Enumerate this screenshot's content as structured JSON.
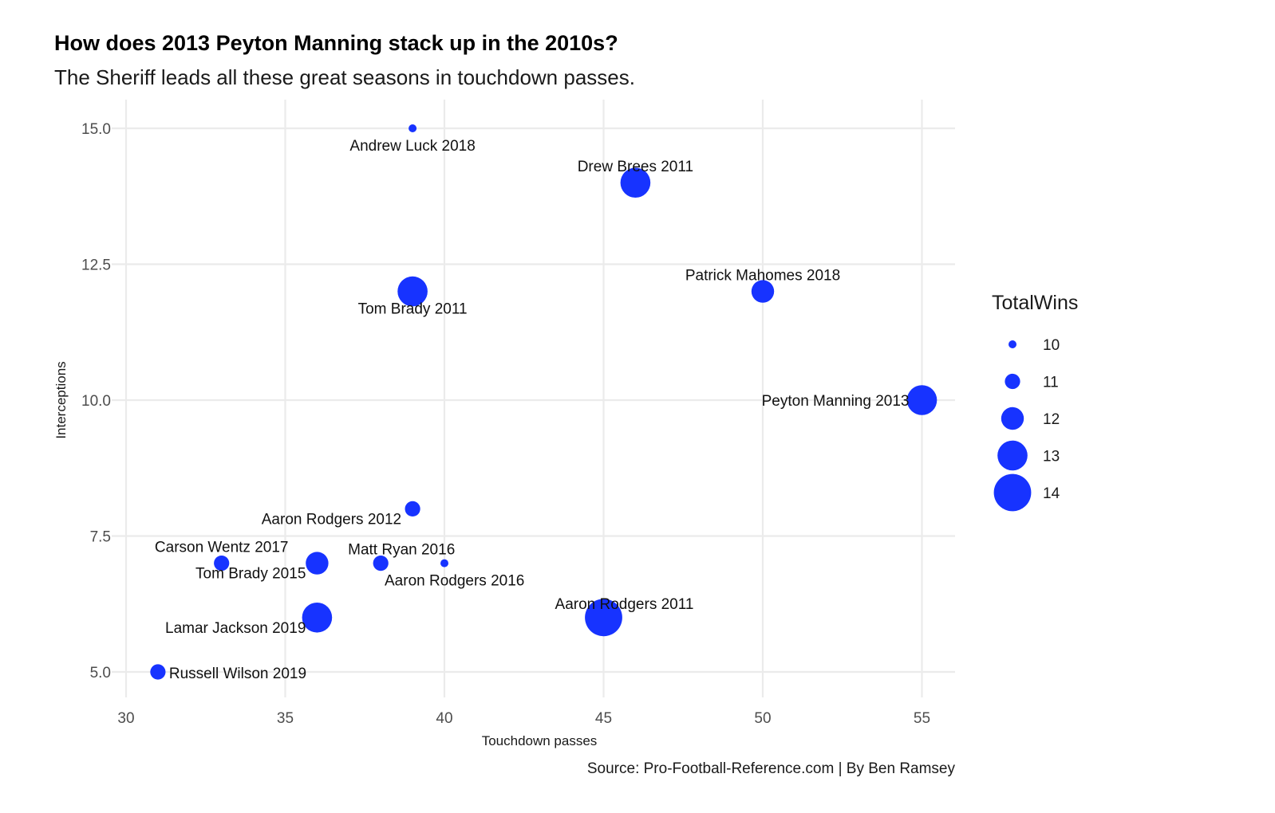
{
  "chart_data": {
    "type": "scatter",
    "title": "How does 2013 Peyton Manning stack up in the 2010s?",
    "subtitle": "The Sheriff leads all these great seasons in touchdown passes.",
    "xlabel": "Touchdown passes",
    "ylabel": "Interceptions",
    "caption": "Source: Pro-Football-Reference.com | By Ben Ramsey",
    "xlim": [
      30,
      55
    ],
    "ylim": [
      5,
      15
    ],
    "x_ticks": [
      "30",
      "35",
      "40",
      "45",
      "50",
      "55"
    ],
    "x_tick_values": [
      30,
      35,
      40,
      45,
      50,
      55
    ],
    "y_ticks": [
      "5.0",
      "7.5",
      "10.0",
      "12.5",
      "15.0"
    ],
    "y_tick_values": [
      5,
      7.5,
      10,
      12.5,
      15
    ],
    "grid": true,
    "legend": {
      "title": "TotalWins",
      "placement": "right",
      "entries": [
        {
          "label": "10",
          "value": 10
        },
        {
          "label": "11",
          "value": 11
        },
        {
          "label": "12",
          "value": 12
        },
        {
          "label": "13",
          "value": 13
        },
        {
          "label": "14",
          "value": 14
        }
      ]
    },
    "point_color": "#1733ff",
    "points": [
      {
        "label": "Andrew Luck 2018",
        "x": 39,
        "y": 15,
        "wins": 10,
        "anchor": "below"
      },
      {
        "label": "Drew Brees 2011",
        "x": 46,
        "y": 14,
        "wins": 13,
        "anchor": "above"
      },
      {
        "label": "Patrick Mahomes 2018",
        "x": 50,
        "y": 12,
        "wins": 12,
        "anchor": "above"
      },
      {
        "label": "Tom Brady 2011",
        "x": 39,
        "y": 12,
        "wins": 13,
        "anchor": "below"
      },
      {
        "label": "Peyton Manning 2013",
        "x": 55,
        "y": 10,
        "wins": 13,
        "anchor": "left"
      },
      {
        "label": "Aaron Rodgers 2012",
        "x": 39,
        "y": 8,
        "wins": 11,
        "anchor": "below-left"
      },
      {
        "label": "Carson Wentz 2017",
        "x": 33,
        "y": 7,
        "wins": 11,
        "anchor": "above"
      },
      {
        "label": "Matt Ryan 2016",
        "x": 38,
        "y": 7,
        "wins": 11,
        "anchor": "above-right"
      },
      {
        "label": "Tom Brady 2015",
        "x": 36,
        "y": 7,
        "wins": 12,
        "anchor": "below-left"
      },
      {
        "label": "Aaron Rodgers 2016",
        "x": 40,
        "y": 7,
        "wins": 10,
        "anchor": "below-right"
      },
      {
        "label": "Aaron Rodgers 2011",
        "x": 45,
        "y": 6,
        "wins": 14,
        "anchor": "above-right"
      },
      {
        "label": "Lamar Jackson 2019",
        "x": 36,
        "y": 6,
        "wins": 13,
        "anchor": "below-left"
      },
      {
        "label": "Russell Wilson 2019",
        "x": 31,
        "y": 5,
        "wins": 11,
        "anchor": "right"
      }
    ]
  }
}
